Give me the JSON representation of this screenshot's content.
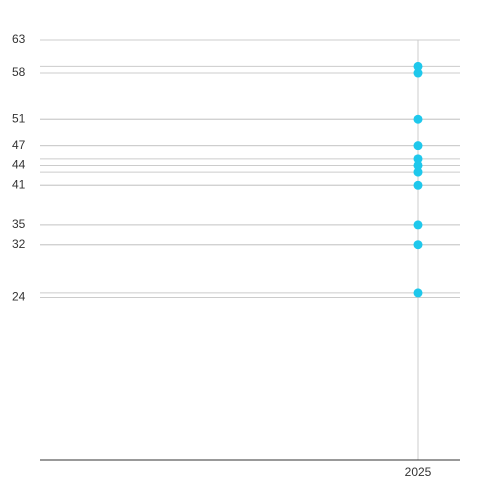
{
  "chart_data": {
    "type": "scatter",
    "x": [
      2025,
      2025,
      2025,
      2025,
      2025,
      2025,
      2025,
      2025,
      2025,
      2025,
      2025
    ],
    "values": [
      59,
      58,
      51,
      47,
      45,
      44,
      43,
      41,
      35,
      32,
      24.7
    ],
    "color": "#1ec8ec",
    "xlim": [
      2016,
      2026
    ],
    "xticks": [
      2025
    ],
    "ylim": [
      -0.6,
      63
    ],
    "yticks": [
      63,
      58,
      51,
      47,
      44,
      41,
      35,
      32,
      24
    ],
    "grid": true
  }
}
